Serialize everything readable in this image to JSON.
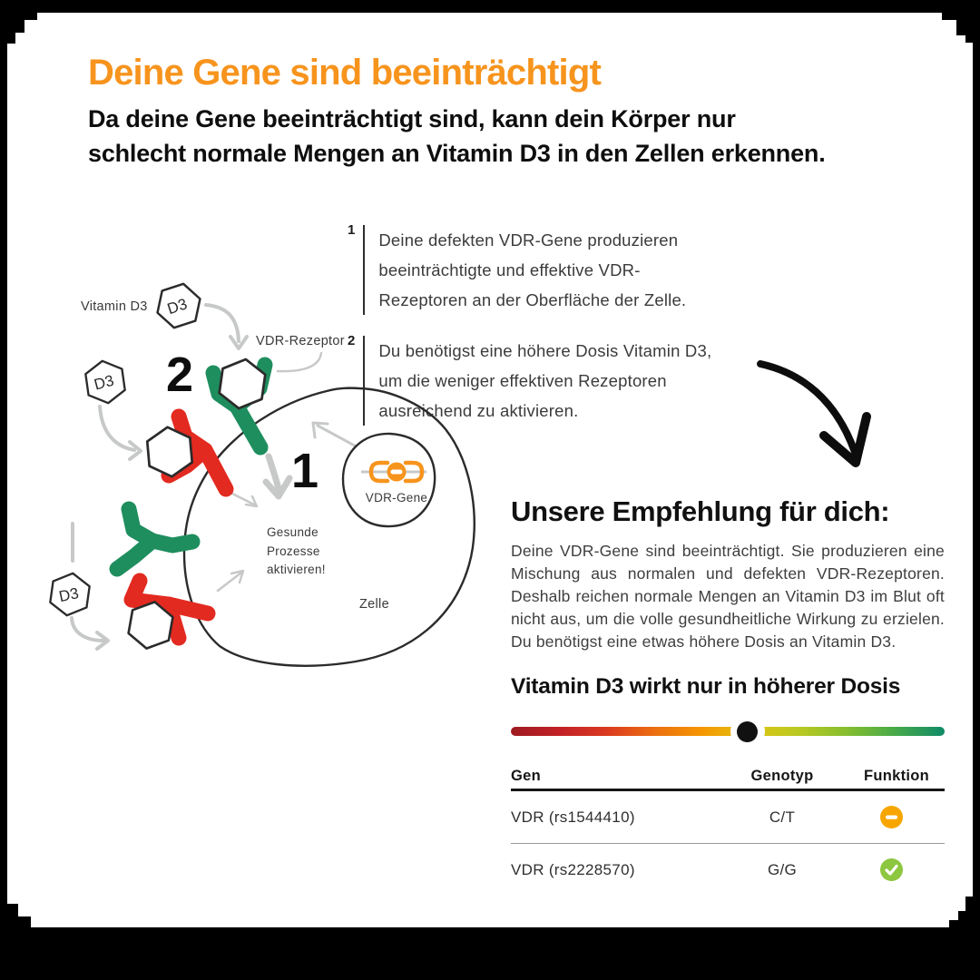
{
  "header": {
    "title": "Deine Gene sind beeinträchtigt",
    "subtitle": "Da deine Gene beeinträchtigt sind, kann dein Körper nur\nschlecht normale Mengen an Vitamin D3 in den Zellen erkennen."
  },
  "steps": [
    {
      "num": "1",
      "text": "Deine defekten VDR-Gene produzieren\nbeeinträchtigte und effektive VDR-\nRezeptoren an der Oberfläche der Zelle."
    },
    {
      "num": "2",
      "text": "Du benötigst eine höhere Dosis Vitamin D3,\num die weniger effektiven Rezeptoren\nausreichend zu aktivieren."
    }
  ],
  "diagram": {
    "labels": {
      "vitamin_d3": "Vitamin D3",
      "vdr_rezeptor": "VDR-Rezeptor",
      "num_2": "2",
      "num_1": "1",
      "gesunde_prozesse": "Gesunde Prozesse aktivieren!",
      "vdr_gene": "VDR-Gene",
      "zelle": "Zelle",
      "d3": "D3"
    }
  },
  "recommendation": {
    "heading": "Unsere Empfehlung für dich:",
    "body": "Deine VDR-Gene sind beeinträchtigt. Sie produzieren eine Mischung aus normalen und defekten VDR-Rezeptoren. Deshalb reichen normale Mengen an Vitamin D3 im Blut oft nicht aus, um die volle gesundheitliche Wirkung zu erzielen. Du benötigst eine etwas höhere Dosis an Vitamin D3.",
    "dosage_heading": "Vitamin D3 wirkt nur in höherer Dosis"
  },
  "scale": {
    "marker_position_pct": 54.5,
    "gradient_colors": [
      "#9E1B21",
      "#C12127",
      "#DB3A20",
      "#EC6F10",
      "#F59800",
      "#DEC513",
      "#B8C922",
      "#84BD30",
      "#45A94A",
      "#108A68"
    ],
    "marker_color": "#111111"
  },
  "table": {
    "headers": [
      "Gen",
      "Genotyp",
      "Funktion"
    ],
    "rows": [
      {
        "gen": "VDR (rs1544410)",
        "genotyp": "C/T",
        "funktion": "impaired",
        "icon_color": "#F7A600"
      },
      {
        "gen": "VDR (rs2228570)",
        "genotyp": "G/G",
        "funktion": "normal",
        "icon_color": "#8DC63F"
      }
    ]
  },
  "colors": {
    "accent_orange": "#F7941D",
    "receptor_green": "#1E8E5E",
    "receptor_red": "#E32A20",
    "arrow_gray": "#C7C9C8",
    "outline_dark": "#2b2b2b"
  }
}
